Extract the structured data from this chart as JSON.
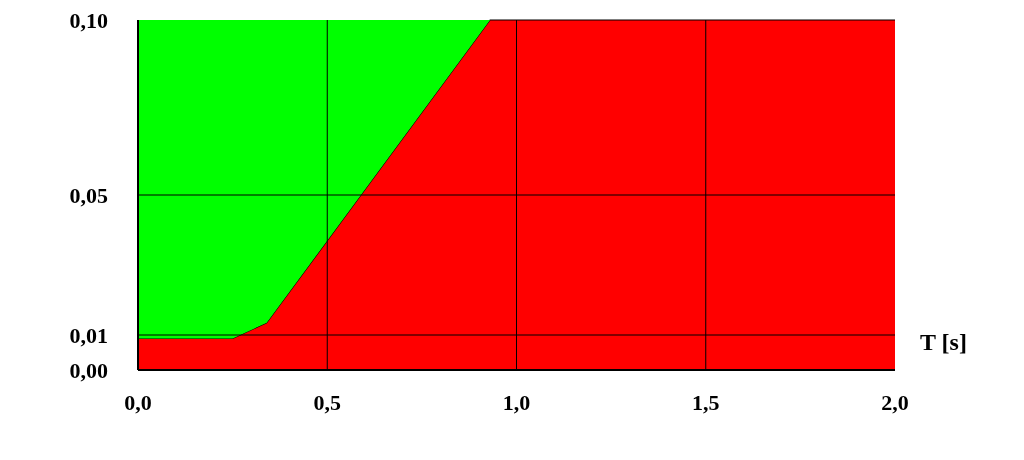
{
  "chart_data": {
    "type": "area",
    "stacked": true,
    "xlabel": "T [s]",
    "x": [
      0,
      0.25,
      0.34,
      0.93,
      2.0
    ],
    "series": [
      {
        "color": "#ff0000",
        "values": [
          0.009,
          0.009,
          0.0135,
          0.1,
          0.1
        ]
      },
      {
        "color": "#00ff00",
        "values": [
          0.091,
          0.091,
          0.0865,
          0,
          0
        ]
      }
    ],
    "xlim": [
      0,
      2
    ],
    "xticks": [
      {
        "value": 0,
        "label": "0,0"
      },
      {
        "value": 0.5,
        "label": "0,5"
      },
      {
        "value": 1,
        "label": "1,0"
      },
      {
        "value": 1.5,
        "label": "1,5"
      },
      {
        "value": 2,
        "label": "2,0"
      }
    ],
    "ylim": [
      0,
      0.1
    ],
    "yticks": [
      {
        "value": 0,
        "label": "0,00"
      },
      {
        "value": 0.01,
        "label": "0,01"
      },
      {
        "value": 0.05,
        "label": "0,05"
      },
      {
        "value": 0.1,
        "label": "0,10"
      }
    ],
    "grid": true
  }
}
